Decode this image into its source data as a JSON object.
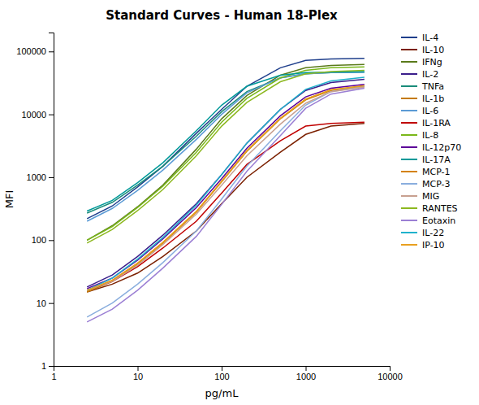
{
  "chart_data": {
    "type": "line",
    "title": "Standard Curves - Human 18-Plex",
    "xlabel": "pg/mL",
    "ylabel": "MFI",
    "log": true,
    "grid": false,
    "legend": "right",
    "xlim": [
      1,
      10000
    ],
    "ylim": [
      1,
      200000
    ],
    "xticks": [
      1,
      10,
      100,
      1000,
      10000
    ],
    "yticks": [
      1,
      10,
      100,
      1000,
      10000,
      100000
    ],
    "x": [
      2.5,
      5,
      10,
      20,
      50,
      100,
      200,
      500,
      1000,
      2000,
      5000
    ],
    "series": [
      {
        "name": "IL-4",
        "color": "#1F3F8C",
        "values": [
          220,
          350,
          700,
          1500,
          5000,
          12000,
          28000,
          55000,
          72000,
          76000,
          78000
        ]
      },
      {
        "name": "IL-10",
        "color": "#7B2000",
        "values": [
          15,
          20,
          30,
          55,
          140,
          380,
          1000,
          2500,
          4800,
          6500,
          7200
        ]
      },
      {
        "name": "IFNg",
        "color": "#5A7A1A",
        "values": [
          100,
          170,
          340,
          750,
          2800,
          8500,
          20000,
          42000,
          55000,
          60000,
          62000
        ]
      },
      {
        "name": "IL-2",
        "color": "#3B1F8C",
        "values": [
          18,
          28,
          55,
          120,
          380,
          1100,
          3500,
          12000,
          24000,
          32000,
          36000
        ]
      },
      {
        "name": "TNFa",
        "color": "#1A8C7A",
        "values": [
          270,
          400,
          750,
          1500,
          4500,
          11000,
          23000,
          38000,
          44000,
          46000,
          47000
        ]
      },
      {
        "name": "IL-1b",
        "color": "#C47A00",
        "values": [
          15,
          22,
          42,
          90,
          280,
          850,
          2600,
          8500,
          17000,
          24000,
          28000
        ]
      },
      {
        "name": "IL-6",
        "color": "#5B9BD5",
        "values": [
          200,
          320,
          620,
          1300,
          4000,
          10000,
          22000,
          38000,
          44000,
          46000,
          47000
        ]
      },
      {
        "name": "IL-1RA",
        "color": "#C00000",
        "values": [
          16,
          22,
          38,
          75,
          200,
          560,
          1600,
          3800,
          6500,
          7200,
          7500
        ]
      },
      {
        "name": "IL-8",
        "color": "#7AB81A",
        "values": [
          100,
          165,
          330,
          720,
          2500,
          7500,
          18000,
          38000,
          50000,
          55000,
          57000
        ]
      },
      {
        "name": "IL-12p70",
        "color": "#5C0099",
        "values": [
          17,
          25,
          48,
          105,
          330,
          950,
          2900,
          9500,
          19000,
          26000,
          30000
        ]
      },
      {
        "name": "IL-17A",
        "color": "#009999",
        "values": [
          290,
          430,
          820,
          1700,
          5500,
          14000,
          28000,
          42000,
          46000,
          47000,
          48000
        ]
      },
      {
        "name": "MCP-1",
        "color": "#D4820A",
        "values": [
          16,
          23,
          43,
          92,
          285,
          860,
          2650,
          8600,
          17500,
          24500,
          28500
        ]
      },
      {
        "name": "MCP-3",
        "color": "#8AAEDE",
        "values": [
          6,
          10,
          20,
          44,
          140,
          450,
          1500,
          5500,
          14000,
          23000,
          28000
        ]
      },
      {
        "name": "MIG",
        "color": "#C8A090",
        "values": [
          16,
          22,
          40,
          85,
          260,
          750,
          2200,
          7000,
          15000,
          23000,
          27000
        ]
      },
      {
        "name": "RANTES",
        "color": "#8DB820",
        "values": [
          90,
          148,
          295,
          640,
          2200,
          6500,
          15500,
          33000,
          44000,
          48000,
          50000
        ]
      },
      {
        "name": "Eotaxin",
        "color": "#9B7FD4",
        "values": [
          5,
          8,
          16,
          36,
          115,
          370,
          1250,
          4600,
          12500,
          21000,
          26000
        ]
      },
      {
        "name": "IL-22",
        "color": "#20B2CC",
        "values": [
          16,
          25,
          50,
          110,
          360,
          1100,
          3500,
          12000,
          25000,
          34000,
          39000
        ]
      },
      {
        "name": "IP-10",
        "color": "#E8A020",
        "values": [
          16,
          23,
          43,
          92,
          285,
          860,
          2650,
          8600,
          17500,
          24500,
          28500
        ]
      }
    ]
  }
}
